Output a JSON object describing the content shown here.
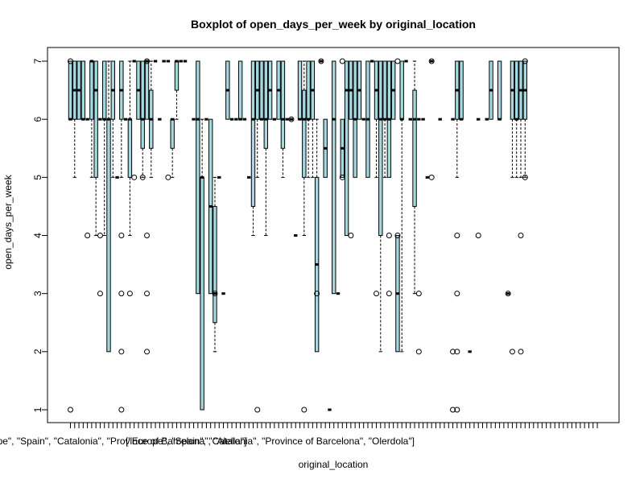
{
  "chart_data": {
    "type": "box",
    "title": "Boxplot of open_days_per_week by original_location",
    "xlabel": "original_location",
    "ylabel": "open_days_per_week",
    "ylim": [
      0.8,
      7.2
    ],
    "yticks": [
      1,
      2,
      3,
      4,
      5,
      6,
      7
    ],
    "box_fill": "#a6d8e0",
    "visible_category_labels": [
      {
        "index": 10,
        "text": "[\"Europe\", \"Spain\", \"Catalonia\", \"Province of Barcelona\", \"Alella\"]"
      },
      {
        "index": 48,
        "text": "[\"Europe\", \"Spain\", \"Catalonia\", \"Province of Barcelona\", \"Olerdola\"]"
      }
    ],
    "categories_count": 125,
    "boxes": [
      {
        "i": 1,
        "q1": 6,
        "med": 6,
        "q3": 7,
        "lo": 6,
        "hi": 7,
        "out": [
          7,
          1
        ]
      },
      {
        "i": 2,
        "q1": 6,
        "med": 6.5,
        "q3": 7,
        "lo": 5,
        "hi": 7,
        "out": []
      },
      {
        "i": 3,
        "q1": 6,
        "med": 6.5,
        "q3": 7,
        "lo": 6,
        "hi": 7,
        "out": []
      },
      {
        "i": 4,
        "q1": 6,
        "med": 6,
        "q3": 7,
        "lo": 6,
        "hi": 7,
        "out": []
      },
      {
        "i": 5,
        "q1": 6,
        "med": 6,
        "q3": 6,
        "lo": 6,
        "hi": 6,
        "out": [
          4
        ]
      },
      {
        "i": 6,
        "q1": 6,
        "med": 7,
        "q3": 7,
        "lo": 5,
        "hi": 7,
        "out": []
      },
      {
        "i": 7,
        "q1": 5,
        "med": 6.5,
        "q3": 7,
        "lo": 4,
        "hi": 7,
        "out": []
      },
      {
        "i": 8,
        "q1": 6,
        "med": 6,
        "q3": 6,
        "lo": 6,
        "hi": 6,
        "out": [
          4,
          3
        ]
      },
      {
        "i": 9,
        "q1": 6,
        "med": 6,
        "q3": 7,
        "lo": 4,
        "hi": 7,
        "out": []
      },
      {
        "i": 10,
        "q1": 2,
        "med": 6,
        "q3": 6,
        "lo": 2,
        "hi": 7,
        "out": []
      },
      {
        "i": 11,
        "q1": 6,
        "med": 6.5,
        "q3": 7,
        "lo": 5,
        "hi": 7,
        "out": []
      },
      {
        "i": 12,
        "q1": 5,
        "med": 5,
        "q3": 5,
        "lo": 5,
        "hi": 5,
        "out": []
      },
      {
        "i": 13,
        "q1": 6,
        "med": 6.5,
        "q3": 7,
        "lo": 5,
        "hi": 7,
        "out": [
          4,
          3,
          2,
          1
        ]
      },
      {
        "i": 14,
        "q1": 6,
        "med": 6,
        "q3": 6,
        "lo": 6,
        "hi": 6,
        "out": []
      },
      {
        "i": 15,
        "q1": 5,
        "med": 6,
        "q3": 6,
        "lo": 4,
        "hi": 7,
        "out": [
          3
        ]
      },
      {
        "i": 16,
        "q1": 7,
        "med": 7,
        "q3": 7,
        "lo": 7,
        "hi": 7,
        "out": [
          5
        ]
      },
      {
        "i": 17,
        "q1": 6,
        "med": 6.5,
        "q3": 7,
        "lo": 6,
        "hi": 7,
        "out": []
      },
      {
        "i": 18,
        "q1": 5.5,
        "med": 6,
        "q3": 7,
        "lo": 5,
        "hi": 7,
        "out": [
          5
        ]
      },
      {
        "i": 19,
        "q1": 6,
        "med": 7,
        "q3": 7,
        "lo": 6,
        "hi": 7,
        "out": [
          7,
          4,
          3,
          2
        ]
      },
      {
        "i": 20,
        "q1": 5.5,
        "med": 6,
        "q3": 6.5,
        "lo": 5,
        "hi": 7,
        "out": []
      },
      {
        "i": 21,
        "q1": 7,
        "med": 7,
        "q3": 7,
        "lo": 7,
        "hi": 7,
        "out": []
      },
      {
        "i": 22,
        "q1": 6,
        "med": 6,
        "q3": 6,
        "lo": 6,
        "hi": 6,
        "out": []
      },
      {
        "i": 23,
        "q1": 7,
        "med": 7,
        "q3": 7,
        "lo": 7,
        "hi": 7,
        "out": []
      },
      {
        "i": 24,
        "q1": 7,
        "med": 7,
        "q3": 7,
        "lo": 7,
        "hi": 7,
        "out": [
          5
        ]
      },
      {
        "i": 25,
        "q1": 5.5,
        "med": 6,
        "q3": 6,
        "lo": 5,
        "hi": 6,
        "out": []
      },
      {
        "i": 26,
        "q1": 6.5,
        "med": 7,
        "q3": 7,
        "lo": 6,
        "hi": 7,
        "out": []
      },
      {
        "i": 27,
        "q1": 7,
        "med": 7,
        "q3": 7,
        "lo": 7,
        "hi": 7,
        "out": []
      },
      {
        "i": 28,
        "q1": 7,
        "med": 7,
        "q3": 7,
        "lo": 7,
        "hi": 7,
        "out": []
      },
      {
        "i": 30,
        "q1": 6,
        "med": 6,
        "q3": 6,
        "lo": 6,
        "hi": 6,
        "out": []
      },
      {
        "i": 31,
        "q1": 3,
        "med": 6,
        "q3": 7,
        "lo": 3,
        "hi": 7,
        "out": []
      },
      {
        "i": 32,
        "q1": 1,
        "med": 5,
        "q3": 5,
        "lo": 1,
        "hi": 6,
        "out": []
      },
      {
        "i": 33,
        "q1": 6,
        "med": 6,
        "q3": 6,
        "lo": 6,
        "hi": 6,
        "out": []
      },
      {
        "i": 34,
        "q1": 3,
        "med": 4.5,
        "q3": 6,
        "lo": 3,
        "hi": 6,
        "out": []
      },
      {
        "i": 35,
        "q1": 2.5,
        "med": 3,
        "q3": 4.5,
        "lo": 2,
        "hi": 5,
        "out": [
          3
        ]
      },
      {
        "i": 36,
        "q1": 5,
        "med": 5,
        "q3": 5,
        "lo": 5,
        "hi": 5,
        "out": []
      },
      {
        "i": 37,
        "q1": 3,
        "med": 3,
        "q3": 3,
        "lo": 3,
        "hi": 3,
        "out": []
      },
      {
        "i": 38,
        "q1": 6,
        "med": 6.5,
        "q3": 7,
        "lo": 6,
        "hi": 7,
        "out": []
      },
      {
        "i": 39,
        "q1": 6,
        "med": 6,
        "q3": 6,
        "lo": 6,
        "hi": 6,
        "out": []
      },
      {
        "i": 40,
        "q1": 6,
        "med": 6,
        "q3": 6,
        "lo": 6,
        "hi": 6,
        "out": []
      },
      {
        "i": 41,
        "q1": 6,
        "med": 6,
        "q3": 7,
        "lo": 6,
        "hi": 7,
        "out": []
      },
      {
        "i": 42,
        "q1": 6,
        "med": 6,
        "q3": 6,
        "lo": 6,
        "hi": 6,
        "out": []
      },
      {
        "i": 43,
        "q1": 5,
        "med": 5,
        "q3": 5,
        "lo": 5,
        "hi": 5,
        "out": []
      },
      {
        "i": 44,
        "q1": 4.5,
        "med": 6,
        "q3": 7,
        "lo": 4,
        "hi": 7,
        "out": []
      },
      {
        "i": 45,
        "q1": 6,
        "med": 6.5,
        "q3": 7,
        "lo": 5,
        "hi": 7,
        "out": [
          1
        ]
      },
      {
        "i": 46,
        "q1": 6,
        "med": 6,
        "q3": 7,
        "lo": 6,
        "hi": 7,
        "out": []
      },
      {
        "i": 47,
        "q1": 5.5,
        "med": 6,
        "q3": 7,
        "lo": 4,
        "hi": 7,
        "out": []
      },
      {
        "i": 48,
        "q1": 6,
        "med": 6.5,
        "q3": 7,
        "lo": 6,
        "hi": 7,
        "out": []
      },
      {
        "i": 49,
        "q1": 6,
        "med": 6,
        "q3": 6,
        "lo": 6,
        "hi": 6,
        "out": []
      },
      {
        "i": 50,
        "q1": 6,
        "med": 6.5,
        "q3": 7,
        "lo": 6,
        "hi": 7,
        "out": []
      },
      {
        "i": 51,
        "q1": 5.5,
        "med": 6,
        "q3": 7,
        "lo": 5,
        "hi": 7,
        "out": []
      },
      {
        "i": 52,
        "q1": 6,
        "med": 6,
        "q3": 6,
        "lo": 6,
        "hi": 6,
        "out": []
      },
      {
        "i": 53,
        "q1": 6,
        "med": 6,
        "q3": 6,
        "lo": 6,
        "hi": 6,
        "out": [
          6
        ]
      },
      {
        "i": 54,
        "q1": 4,
        "med": 4,
        "q3": 4,
        "lo": 4,
        "hi": 4,
        "out": []
      },
      {
        "i": 55,
        "q1": 6,
        "med": 6,
        "q3": 7,
        "lo": 6,
        "hi": 7,
        "out": []
      },
      {
        "i": 56,
        "q1": 5,
        "med": 6,
        "q3": 6.5,
        "lo": 4,
        "hi": 7,
        "out": [
          1
        ]
      },
      {
        "i": 57,
        "q1": 6,
        "med": 6,
        "q3": 7,
        "lo": 5,
        "hi": 7,
        "out": []
      },
      {
        "i": 58,
        "q1": 6,
        "med": 6.5,
        "q3": 7,
        "lo": 5,
        "hi": 7,
        "out": []
      },
      {
        "i": 59,
        "q1": 2,
        "med": 3.5,
        "q3": 5,
        "lo": 2,
        "hi": 6,
        "out": [
          3
        ]
      },
      {
        "i": 60,
        "q1": 7,
        "med": 7,
        "q3": 7,
        "lo": 7,
        "hi": 7,
        "out": [
          7
        ]
      },
      {
        "i": 61,
        "q1": 5,
        "med": 5.5,
        "q3": 6,
        "lo": 5,
        "hi": 6,
        "out": []
      },
      {
        "i": 62,
        "q1": 1,
        "med": 1,
        "q3": 1,
        "lo": 1,
        "hi": 1,
        "out": []
      },
      {
        "i": 63,
        "q1": 3,
        "med": 6,
        "q3": 7,
        "lo": 3,
        "hi": 7,
        "out": []
      },
      {
        "i": 64,
        "q1": 3,
        "med": 3,
        "q3": 3,
        "lo": 3,
        "hi": 3,
        "out": []
      },
      {
        "i": 65,
        "q1": 5,
        "med": 5.5,
        "q3": 6,
        "lo": 5,
        "hi": 6,
        "out": [
          7,
          5
        ]
      },
      {
        "i": 66,
        "q1": 4,
        "med": 6.5,
        "q3": 7,
        "lo": 4,
        "hi": 7,
        "out": []
      },
      {
        "i": 67,
        "q1": 6,
        "med": 6.5,
        "q3": 7,
        "lo": 6,
        "hi": 7,
        "out": [
          4
        ]
      },
      {
        "i": 68,
        "q1": 5,
        "med": 6,
        "q3": 7,
        "lo": 5,
        "hi": 7,
        "out": []
      },
      {
        "i": 69,
        "q1": 6,
        "med": 6.5,
        "q3": 7,
        "lo": 6,
        "hi": 7,
        "out": []
      },
      {
        "i": 70,
        "q1": 6,
        "med": 6,
        "q3": 6,
        "lo": 6,
        "hi": 6,
        "out": []
      },
      {
        "i": 71,
        "q1": 5,
        "med": 6,
        "q3": 7,
        "lo": 5,
        "hi": 7,
        "out": []
      },
      {
        "i": 72,
        "q1": 7,
        "med": 7,
        "q3": 7,
        "lo": 7,
        "hi": 7,
        "out": []
      },
      {
        "i": 73,
        "q1": 6,
        "med": 6.5,
        "q3": 7,
        "lo": 5,
        "hi": 7,
        "out": [
          3
        ]
      },
      {
        "i": 74,
        "q1": 4,
        "med": 6,
        "q3": 7,
        "lo": 2,
        "hi": 7,
        "out": []
      },
      {
        "i": 75,
        "q1": 6,
        "med": 6,
        "q3": 7,
        "lo": 5,
        "hi": 7,
        "out": []
      },
      {
        "i": 76,
        "q1": 5,
        "med": 6,
        "q3": 7,
        "lo": 5,
        "hi": 7,
        "out": [
          4,
          3
        ]
      },
      {
        "i": 77,
        "q1": 6,
        "med": 6.5,
        "q3": 7,
        "lo": 6,
        "hi": 7,
        "out": []
      },
      {
        "i": 78,
        "q1": 2,
        "med": 3,
        "q3": 4,
        "lo": 2,
        "hi": 4,
        "out": [
          7,
          4
        ]
      },
      {
        "i": 79,
        "q1": 6,
        "med": 6,
        "q3": 7,
        "lo": 2,
        "hi": 7,
        "out": []
      },
      {
        "i": 80,
        "q1": 7,
        "med": 7,
        "q3": 7,
        "lo": 7,
        "hi": 7,
        "out": []
      },
      {
        "i": 81,
        "q1": 6,
        "med": 6,
        "q3": 6,
        "lo": 6,
        "hi": 6,
        "out": []
      },
      {
        "i": 82,
        "q1": 4.5,
        "med": 6,
        "q3": 6.5,
        "lo": 3,
        "hi": 7,
        "out": []
      },
      {
        "i": 83,
        "q1": 6,
        "med": 6,
        "q3": 6,
        "lo": 6,
        "hi": 6,
        "out": [
          3,
          2
        ]
      },
      {
        "i": 84,
        "q1": 6,
        "med": 6,
        "q3": 6,
        "lo": 6,
        "hi": 6,
        "out": []
      },
      {
        "i": 85,
        "q1": 5,
        "med": 5,
        "q3": 5,
        "lo": 5,
        "hi": 5,
        "out": []
      },
      {
        "i": 86,
        "q1": 7,
        "med": 7,
        "q3": 7,
        "lo": 7,
        "hi": 7,
        "out": [
          7,
          5
        ]
      },
      {
        "i": 88,
        "q1": 6,
        "med": 6,
        "q3": 6,
        "lo": 6,
        "hi": 6,
        "out": []
      },
      {
        "i": 91,
        "q1": 6,
        "med": 6,
        "q3": 6,
        "lo": 6,
        "hi": 6,
        "out": [
          2,
          1
        ]
      },
      {
        "i": 92,
        "q1": 6,
        "med": 6.5,
        "q3": 7,
        "lo": 5,
        "hi": 7,
        "out": [
          4,
          3,
          2,
          1
        ]
      },
      {
        "i": 93,
        "q1": 6,
        "med": 6,
        "q3": 7,
        "lo": 6,
        "hi": 7,
        "out": []
      },
      {
        "i": 95,
        "q1": 2,
        "med": 2,
        "q3": 2,
        "lo": 2,
        "hi": 2,
        "out": []
      },
      {
        "i": 97,
        "q1": 6,
        "med": 6,
        "q3": 6,
        "lo": 6,
        "hi": 6,
        "out": [
          4
        ]
      },
      {
        "i": 99,
        "q1": 6,
        "med": 6,
        "q3": 6,
        "lo": 6,
        "hi": 6,
        "out": []
      },
      {
        "i": 100,
        "q1": 6,
        "med": 6.5,
        "q3": 7,
        "lo": 6,
        "hi": 7,
        "out": []
      },
      {
        "i": 102,
        "q1": 6,
        "med": 6,
        "q3": 7,
        "lo": 6,
        "hi": 7,
        "out": []
      },
      {
        "i": 104,
        "q1": 3,
        "med": 3,
        "q3": 3,
        "lo": 3,
        "hi": 3,
        "out": [
          3
        ]
      },
      {
        "i": 105,
        "q1": 6,
        "med": 6.5,
        "q3": 7,
        "lo": 5,
        "hi": 7,
        "out": [
          2
        ]
      },
      {
        "i": 106,
        "q1": 6,
        "med": 6,
        "q3": 7,
        "lo": 5,
        "hi": 7,
        "out": []
      },
      {
        "i": 107,
        "q1": 6,
        "med": 6.5,
        "q3": 7,
        "lo": 5,
        "hi": 7,
        "out": [
          4,
          2
        ]
      },
      {
        "i": 108,
        "q1": 6,
        "med": 6.5,
        "q3": 7,
        "lo": 5,
        "hi": 7,
        "out": [
          7,
          5
        ]
      }
    ]
  }
}
